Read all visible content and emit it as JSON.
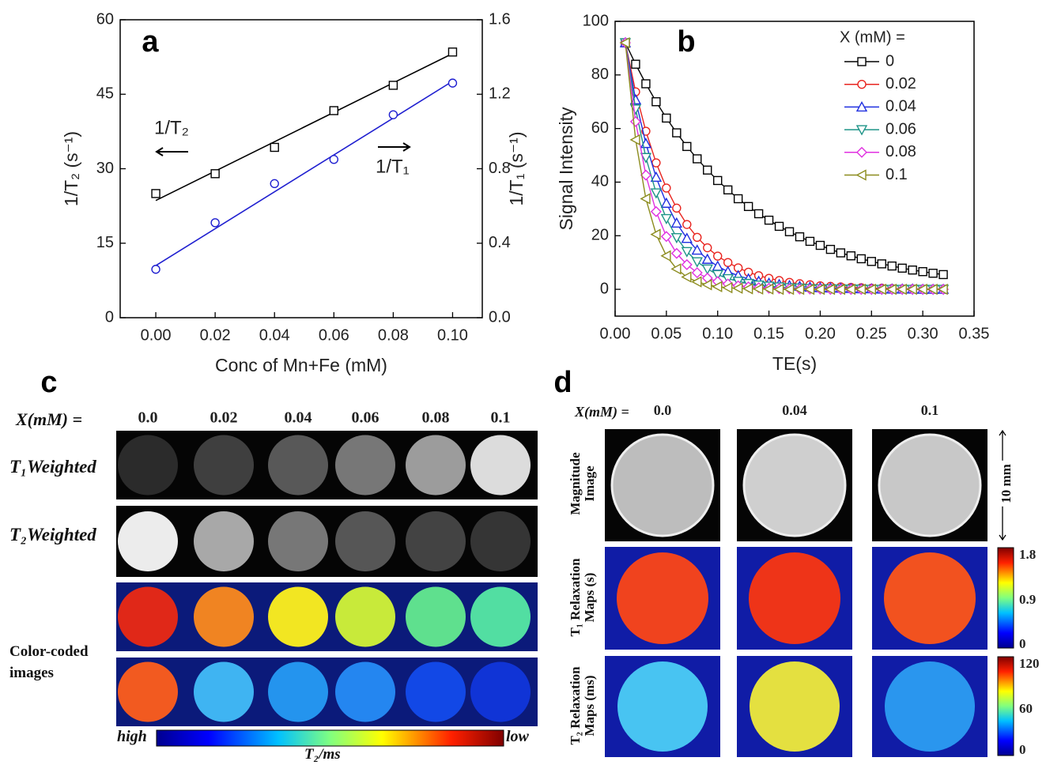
{
  "chart_data": [
    {
      "type": "scatter",
      "panel_label": "a",
      "x_label": "Conc of Mn+Fe (mM)",
      "y_label": "1/T₂ (s⁻¹)",
      "y2_label": "1/T₁ (s⁻¹)",
      "annotations": [
        "1/T₂",
        "1/T₁"
      ],
      "x": [
        0,
        0.02,
        0.04,
        0.06,
        0.08,
        0.1
      ],
      "xlim": [
        -0.012,
        0.11
      ],
      "xticks": [
        {
          "value": 0,
          "label": "0.00"
        },
        0.02,
        0.04,
        0.06,
        0.08,
        {
          "value": 0.1,
          "label": "0.10"
        }
      ],
      "ylim": [
        0,
        60
      ],
      "yticks": [
        0,
        15,
        30,
        45,
        60
      ],
      "y2lim": [
        0,
        1.6
      ],
      "y2ticks": [
        {
          "value": 0,
          "label": "0.0"
        },
        0.4,
        0.8,
        1.2,
        1.6
      ],
      "series": [
        {
          "color": "#000000",
          "marker": "square",
          "values": [
            25,
            29,
            34.3,
            41.7,
            46.8,
            53.5
          ],
          "fit": [
            23.6,
            53.2
          ]
        },
        {
          "color": "#1f1fd0",
          "marker": "circle",
          "axis": "y2",
          "values": [
            0.26,
            0.51,
            0.72,
            0.85,
            1.09,
            1.26
          ],
          "fit": [
            0.28,
            1.27
          ]
        }
      ]
    },
    {
      "type": "line",
      "panel_label": "b",
      "x_label": "TE(s)",
      "y_label": "Signal Intensity",
      "legend_title": "X (mM) =",
      "x": [
        0.01,
        0.02,
        0.03,
        0.04,
        0.05,
        0.06,
        0.07,
        0.08,
        0.09,
        0.1,
        0.11,
        0.12,
        0.13,
        0.14,
        0.15,
        0.16,
        0.17,
        0.18,
        0.19,
        0.2,
        0.21,
        0.22,
        0.23,
        0.24,
        0.25,
        0.26,
        0.27,
        0.28,
        0.29,
        0.3,
        0.31,
        0.32
      ],
      "xlim": [
        0,
        0.35
      ],
      "xticks": [
        {
          "value": 0,
          "label": "0.00"
        },
        0.05,
        {
          "value": 0.1,
          "label": "0.10"
        },
        0.15,
        {
          "value": 0.2,
          "label": "0.20"
        },
        0.25,
        {
          "value": 0.3,
          "label": "0.30"
        },
        0.35
      ],
      "ylim": [
        -10,
        100
      ],
      "yticks": [
        0,
        20,
        40,
        60,
        80,
        100
      ],
      "series": [
        {
          "name": "0",
          "color": "#000000",
          "marker": "square",
          "values": [
            92,
            84.0,
            76.7,
            70.0,
            63.9,
            58.4,
            53.3,
            48.7,
            44.5,
            40.6,
            37.1,
            33.8,
            30.9,
            28.2,
            25.8,
            23.5,
            21.5,
            19.6,
            17.9,
            16.4,
            14.9,
            13.6,
            12.5,
            11.4,
            10.4,
            9.5,
            8.7,
            7.9,
            7.2,
            6.6,
            6.0,
            5.5
          ]
        },
        {
          "name": "0.02",
          "color": "#e8241f",
          "marker": "circle",
          "values": [
            92,
            73.7,
            59.0,
            47.2,
            37.8,
            30.3,
            24.2,
            19.4,
            15.5,
            12.4,
            10.0,
            8.0,
            6.4,
            5.1,
            4.1,
            3.3,
            2.6,
            2.1,
            1.7,
            1.3,
            1.1,
            0.9,
            0.7,
            0.6,
            0.4,
            0.4,
            0.3,
            0.2,
            0.2,
            0.1,
            0.1,
            0.1
          ]
        },
        {
          "name": "0.04",
          "color": "#1f2fe0",
          "marker": "triangle-up",
          "values": [
            92,
            70.7,
            54.4,
            41.8,
            32.1,
            24.7,
            19.0,
            14.6,
            11.2,
            8.6,
            6.6,
            5.1,
            3.9,
            3.0,
            2.3,
            1.8,
            1.4,
            1.1,
            0.8,
            0.6,
            0.5,
            0.4,
            0.3,
            0.2,
            0.2,
            0.1,
            0.1,
            0.1,
            0.1,
            0,
            0,
            0
          ]
        },
        {
          "name": "0.06",
          "color": "#1e9488",
          "marker": "triangle-down",
          "values": [
            92,
            67.3,
            49.2,
            36.0,
            26.4,
            19.3,
            14.1,
            10.3,
            7.6,
            5.5,
            4.0,
            3.0,
            2.2,
            1.6,
            1.2,
            0.9,
            0.6,
            0.5,
            0.3,
            0.2,
            0.2,
            0.1,
            0.1,
            0.1,
            0,
            0,
            0,
            0,
            0,
            0,
            0,
            0
          ]
        },
        {
          "name": "0.08",
          "color": "#e030e0",
          "marker": "diamond",
          "values": [
            92,
            62.6,
            42.6,
            29.0,
            19.7,
            13.4,
            9.2,
            6.2,
            4.2,
            2.9,
            2.0,
            1.3,
            0.9,
            0.6,
            0.4,
            0.3,
            0.2,
            0.1,
            0.1,
            0.1,
            0,
            0,
            0,
            0,
            0,
            0,
            0,
            0,
            0,
            0,
            0,
            0
          ]
        },
        {
          "name": "0.1",
          "color": "#8c8c1e",
          "marker": "triangle-left",
          "values": [
            92,
            55.8,
            33.8,
            20.5,
            12.5,
            7.6,
            4.6,
            2.8,
            1.7,
            1.0,
            0.6,
            0.4,
            0.2,
            0.1,
            0.1,
            0,
            0,
            0,
            0,
            0,
            0,
            0,
            0,
            0,
            0,
            0,
            0,
            0,
            0,
            0,
            0,
            0
          ]
        }
      ]
    }
  ],
  "panel_c": {
    "letter": "c",
    "x_label": "X(mM) =",
    "columns": [
      "0.0",
      "0.02",
      "0.04",
      "0.06",
      "0.08",
      "0.1"
    ],
    "rows": [
      "T₁Weighted",
      "T₂Weighted",
      "Color-coded images"
    ],
    "colorbar": {
      "high": "high",
      "low": "low",
      "label": "T₂/ms"
    }
  },
  "panel_d": {
    "letter": "d",
    "x_label": "X(mM) =",
    "columns": [
      "0.0",
      "0.04",
      "0.1"
    ],
    "rows": [
      "Magnitude Image",
      "T₁ Relaxation Maps (s)",
      "T₂ Relaxation Maps (ms)"
    ],
    "scale": "10 mm",
    "colorbar_t1": [
      "1.8",
      "0.9",
      "0"
    ],
    "colorbar_t2": [
      "120",
      "60",
      "0"
    ]
  }
}
